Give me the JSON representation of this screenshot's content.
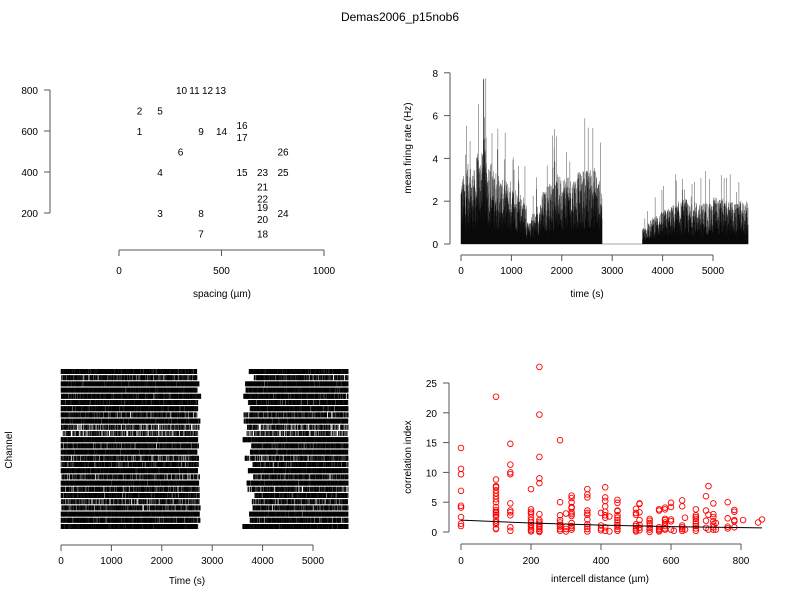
{
  "title": "Demas2006_p15nob6",
  "chart_data": [
    {
      "type": "scatter",
      "panel": "electrode-layout",
      "xlabel": "spacing (µm)",
      "ylabel": "",
      "xlim": [
        0,
        1000
      ],
      "ylim": [
        100,
        800
      ],
      "xticks": [
        "0",
        "500",
        "1000"
      ],
      "yticks": [
        "200",
        "400",
        "600",
        "800"
      ],
      "xtick_values": [
        0,
        500,
        1000
      ],
      "ytick_values": [
        200,
        400,
        600,
        800
      ],
      "points": [
        {
          "label": "1",
          "x": 100,
          "y": 600
        },
        {
          "label": "2",
          "x": 100,
          "y": 700
        },
        {
          "label": "3",
          "x": 200,
          "y": 200
        },
        {
          "label": "4",
          "x": 200,
          "y": 400
        },
        {
          "label": "5",
          "x": 200,
          "y": 700
        },
        {
          "label": "6",
          "x": 300,
          "y": 500
        },
        {
          "label": "7",
          "x": 400,
          "y": 100
        },
        {
          "label": "8",
          "x": 400,
          "y": 200
        },
        {
          "label": "9",
          "x": 400,
          "y": 600
        },
        {
          "label": "10",
          "x": 400,
          "y": 800
        },
        {
          "label": "11",
          "x": 400,
          "y": 800
        },
        {
          "label": "12",
          "x": 400,
          "y": 800
        },
        {
          "label": "13",
          "x": 400,
          "y": 800
        },
        {
          "label": "14",
          "x": 500,
          "y": 600
        },
        {
          "label": "15",
          "x": 600,
          "y": 400
        },
        {
          "label": "16",
          "x": 600,
          "y": 600
        },
        {
          "label": "17",
          "x": 600,
          "y": 600
        },
        {
          "label": "18",
          "x": 700,
          "y": 100
        },
        {
          "label": "19",
          "x": 700,
          "y": 200
        },
        {
          "label": "20",
          "x": 700,
          "y": 200
        },
        {
          "label": "21",
          "x": 700,
          "y": 300
        },
        {
          "label": "22",
          "x": 700,
          "y": 300
        },
        {
          "label": "23",
          "x": 700,
          "y": 400
        },
        {
          "label": "24",
          "x": 800,
          "y": 200
        },
        {
          "label": "25",
          "x": 800,
          "y": 400
        },
        {
          "label": "26",
          "x": 800,
          "y": 500
        }
      ]
    },
    {
      "type": "line",
      "panel": "mean-firing-rate",
      "xlabel": "time (s)",
      "ylabel": "mean firing rate (Hz)",
      "xlim": [
        0,
        5700
      ],
      "ylim": [
        0,
        8
      ],
      "xticks": [
        "0",
        "1000",
        "2000",
        "3000",
        "4000",
        "5000"
      ],
      "yticks": [
        "0",
        "2",
        "4",
        "6",
        "8"
      ],
      "xtick_values": [
        0,
        1000,
        2000,
        3000,
        4000,
        5000
      ],
      "ytick_values": [
        0,
        2,
        4,
        6,
        8
      ],
      "bin_width_s": 100,
      "peak": {
        "x": 450,
        "y": 7.7
      },
      "envelope": [
        2.6,
        3.0,
        2.8,
        3.4,
        4.0,
        3.2,
        2.8,
        2.6,
        2.4,
        2.4,
        2.2,
        2.0,
        1.8,
        0.8,
        1.2,
        1.5,
        2.0,
        2.3,
        2.5,
        2.6,
        2.6,
        2.5,
        2.6,
        2.7,
        2.8,
        2.8,
        2.9,
        2.4,
        0,
        0,
        0,
        0,
        0,
        0,
        0,
        0,
        0.6,
        0.9,
        1.1,
        1.2,
        1.3,
        1.4,
        1.5,
        1.6,
        1.7,
        1.5,
        1.6,
        1.5,
        1.6,
        1.5,
        1.8,
        1.7,
        1.6,
        1.6,
        1.5,
        1.6,
        1.6
      ]
    },
    {
      "type": "raster",
      "panel": "spike-raster",
      "xlabel": "Time (s)",
      "ylabel": "Channel",
      "xlim": [
        0,
        5700
      ],
      "xticks": [
        "0",
        "1000",
        "2000",
        "3000",
        "4000",
        "5000"
      ],
      "xtick_values": [
        0,
        1000,
        2000,
        3000,
        4000,
        5000
      ],
      "channels": 26,
      "active_ranges": [
        [
          0,
          2780
        ],
        [
          3600,
          5700
        ]
      ]
    },
    {
      "type": "scatter",
      "panel": "correlation",
      "xlabel": "intercell distance (µm)",
      "ylabel": "correlation index",
      "xlim": [
        0,
        860
      ],
      "ylim": [
        0,
        28
      ],
      "xticks": [
        "0",
        "200",
        "400",
        "600",
        "800"
      ],
      "yticks": [
        "0",
        "5",
        "10",
        "15",
        "20",
        "25"
      ],
      "xtick_values": [
        0,
        200,
        400,
        600,
        800
      ],
      "ytick_values": [
        0,
        5,
        10,
        15,
        20,
        25
      ],
      "point_color": "#ff0000",
      "fit_line": [
        [
          0,
          2.0
        ],
        [
          200,
          1.5
        ],
        [
          400,
          1.15
        ],
        [
          600,
          0.9
        ],
        [
          860,
          0.7
        ]
      ],
      "groups": [
        {
          "x": 0,
          "y": [
            14.1,
            10.6,
            9.7,
            6.9,
            4.4,
            4.1,
            2.5,
            1.4,
            1.0
          ]
        },
        {
          "x": 100,
          "y": [
            22.7,
            8.8,
            7.7,
            7.5,
            7.0,
            6.5,
            6.0,
            5.5,
            5.0,
            4.2,
            3.7,
            3.4,
            3.2,
            2.9,
            2.6,
            1.9,
            1.6,
            1.3,
            0.6,
            0.5
          ]
        },
        {
          "x": 141,
          "y": [
            14.8,
            11.3,
            10.0,
            9.7,
            4.8,
            3.6,
            3.3,
            2.8,
            0.8,
            0.2
          ]
        },
        {
          "x": 200,
          "y": [
            7.2,
            3.8,
            3.4,
            3.1,
            2.5,
            2.0,
            1.6,
            1.2,
            0.9,
            0.6,
            0.3,
            0.1
          ]
        },
        {
          "x": 224,
          "y": [
            27.7,
            19.7,
            12.6,
            9.0,
            8.2,
            3.0,
            2.0,
            1.7,
            1.4,
            1.1,
            0.8,
            0.5,
            0.2,
            0.0
          ]
        },
        {
          "x": 283,
          "y": [
            15.4,
            5.0,
            2.8,
            2.0,
            1.6,
            1.2,
            0.9,
            0.5,
            0.2
          ]
        },
        {
          "x": 300,
          "y": [
            3.1,
            0.9,
            0.5,
            0.1
          ]
        },
        {
          "x": 316,
          "y": [
            6.1,
            5.7,
            5.0,
            4.2,
            4.0,
            3.3,
            3.0,
            2.7,
            1.5,
            1.0,
            0.7,
            0.4
          ]
        },
        {
          "x": 361,
          "y": [
            7.2,
            6.3,
            5.8,
            3.6,
            3.2,
            2.9,
            2.1,
            1.3,
            0.9,
            0.5,
            0.1
          ]
        },
        {
          "x": 400,
          "y": [
            3.2,
            1.1,
            0.6,
            0.3
          ]
        },
        {
          "x": 412,
          "y": [
            7.5,
            5.8,
            5.2,
            4.3,
            3.4,
            2.8,
            2.4,
            0.8,
            0.2
          ]
        },
        {
          "x": 424,
          "y": [
            2.6,
            0.1
          ]
        },
        {
          "x": 447,
          "y": [
            5.4,
            4.9,
            3.6,
            3.5,
            2.8,
            2.4,
            2.0,
            1.6,
            1.2,
            0.9,
            0.5,
            0.2
          ]
        },
        {
          "x": 500,
          "y": [
            3.9,
            3.2,
            2.9,
            1.3,
            1.0,
            0.6,
            0.3,
            0.1
          ]
        },
        {
          "x": 510,
          "y": [
            4.8,
            4.7,
            3.3,
            2.0,
            1.2,
            0.7,
            0.3
          ]
        },
        {
          "x": 539,
          "y": [
            2.2,
            1.9,
            1.5,
            1.1,
            0.7,
            0.4,
            0.0
          ]
        },
        {
          "x": 566,
          "y": [
            3.8,
            3.6,
            0.8,
            0.5,
            0.3,
            0.1
          ]
        },
        {
          "x": 583,
          "y": [
            4.1,
            3.8,
            2.2,
            2.0,
            1.6,
            1.3,
            1.0,
            0.6,
            0.4
          ]
        },
        {
          "x": 600,
          "y": [
            4.9,
            4.2,
            2.1,
            1.8,
            0.4
          ]
        },
        {
          "x": 608,
          "y": [
            0.2
          ]
        },
        {
          "x": 632,
          "y": [
            5.3,
            4.3,
            1.1,
            0.8,
            0.5,
            0.2
          ]
        },
        {
          "x": 640,
          "y": [
            2.4,
            0.4
          ]
        },
        {
          "x": 671,
          "y": [
            3.8,
            2.8,
            2.5,
            2.2,
            1.8,
            1.4,
            1.0,
            0.6,
            0.2
          ]
        },
        {
          "x": 700,
          "y": [
            6.0,
            3.6,
            1.9,
            0.7
          ]
        },
        {
          "x": 707,
          "y": [
            7.7,
            2.9,
            0.4
          ]
        },
        {
          "x": 721,
          "y": [
            4.8,
            3.0,
            2.5,
            1.8,
            1.3,
            0.8,
            0.4
          ]
        },
        {
          "x": 728,
          "y": [
            1.5,
            0.4
          ]
        },
        {
          "x": 762,
          "y": [
            5.0,
            2.3,
            0.9,
            0.6
          ]
        },
        {
          "x": 781,
          "y": [
            3.7,
            3.4,
            2.0,
            1.8,
            0.8
          ]
        },
        {
          "x": 806,
          "y": [
            2.0
          ]
        },
        {
          "x": 849,
          "y": [
            1.6
          ]
        },
        {
          "x": 860,
          "y": [
            2.1
          ]
        }
      ]
    }
  ]
}
